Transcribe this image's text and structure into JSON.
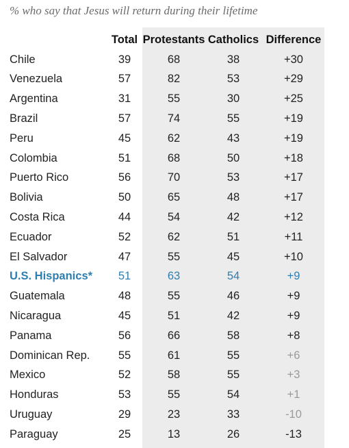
{
  "subtitle": "% who say that Jesus will return during their lifetime",
  "columns": [
    "Total",
    "Protestants",
    "Catholics",
    "Difference"
  ],
  "colors": {
    "highlight": "#2e7fb0",
    "muted": "#9a9a9a",
    "shade": "#ececec"
  },
  "chart_data": {
    "type": "table",
    "title": "% who say that Jesus will return during their lifetime",
    "columns": [
      "",
      "Total",
      "Protestants",
      "Catholics",
      "Difference"
    ],
    "rows": [
      {
        "country": "Chile",
        "total": "39",
        "protestants": "68",
        "catholics": "38",
        "difference": "+30",
        "significant": true
      },
      {
        "country": "Venezuela",
        "total": "57",
        "protestants": "82",
        "catholics": "53",
        "difference": "+29",
        "significant": true
      },
      {
        "country": "Argentina",
        "total": "31",
        "protestants": "55",
        "catholics": "30",
        "difference": "+25",
        "significant": true
      },
      {
        "country": "Brazil",
        "total": "57",
        "protestants": "74",
        "catholics": "55",
        "difference": "+19",
        "significant": true
      },
      {
        "country": "Peru",
        "total": "45",
        "protestants": "62",
        "catholics": "43",
        "difference": "+19",
        "significant": true
      },
      {
        "country": "Colombia",
        "total": "51",
        "protestants": "68",
        "catholics": "50",
        "difference": "+18",
        "significant": true
      },
      {
        "country": "Puerto Rico",
        "total": "56",
        "protestants": "70",
        "catholics": "53",
        "difference": "+17",
        "significant": true
      },
      {
        "country": "Bolivia",
        "total": "50",
        "protestants": "65",
        "catholics": "48",
        "difference": "+17",
        "significant": true
      },
      {
        "country": "Costa Rica",
        "total": "44",
        "protestants": "54",
        "catholics": "42",
        "difference": "+12",
        "significant": true
      },
      {
        "country": "Ecuador",
        "total": "52",
        "protestants": "62",
        "catholics": "51",
        "difference": "+11",
        "significant": true
      },
      {
        "country": "El Salvador",
        "total": "47",
        "protestants": "55",
        "catholics": "45",
        "difference": "+10",
        "significant": true
      },
      {
        "country": "U.S. Hispanics*",
        "total": "51",
        "protestants": "63",
        "catholics": "54",
        "difference": "+9",
        "significant": true,
        "highlight": true
      },
      {
        "country": "Guatemala",
        "total": "48",
        "protestants": "55",
        "catholics": "46",
        "difference": "+9",
        "significant": true
      },
      {
        "country": "Nicaragua",
        "total": "45",
        "protestants": "51",
        "catholics": "42",
        "difference": "+9",
        "significant": true
      },
      {
        "country": "Panama",
        "total": "56",
        "protestants": "66",
        "catholics": "58",
        "difference": "+8",
        "significant": true
      },
      {
        "country": "Dominican Rep.",
        "total": "55",
        "protestants": "61",
        "catholics": "55",
        "difference": "+6",
        "significant": false
      },
      {
        "country": "Mexico",
        "total": "52",
        "protestants": "58",
        "catholics": "55",
        "difference": "+3",
        "significant": false
      },
      {
        "country": "Honduras",
        "total": "53",
        "protestants": "55",
        "catholics": "54",
        "difference": "+1",
        "significant": false
      },
      {
        "country": "Uruguay",
        "total": "29",
        "protestants": "23",
        "catholics": "33",
        "difference": "-10",
        "significant": false
      },
      {
        "country": "Paraguay",
        "total": "25",
        "protestants": "13",
        "catholics": "26",
        "difference": "-13",
        "significant": true
      }
    ]
  }
}
